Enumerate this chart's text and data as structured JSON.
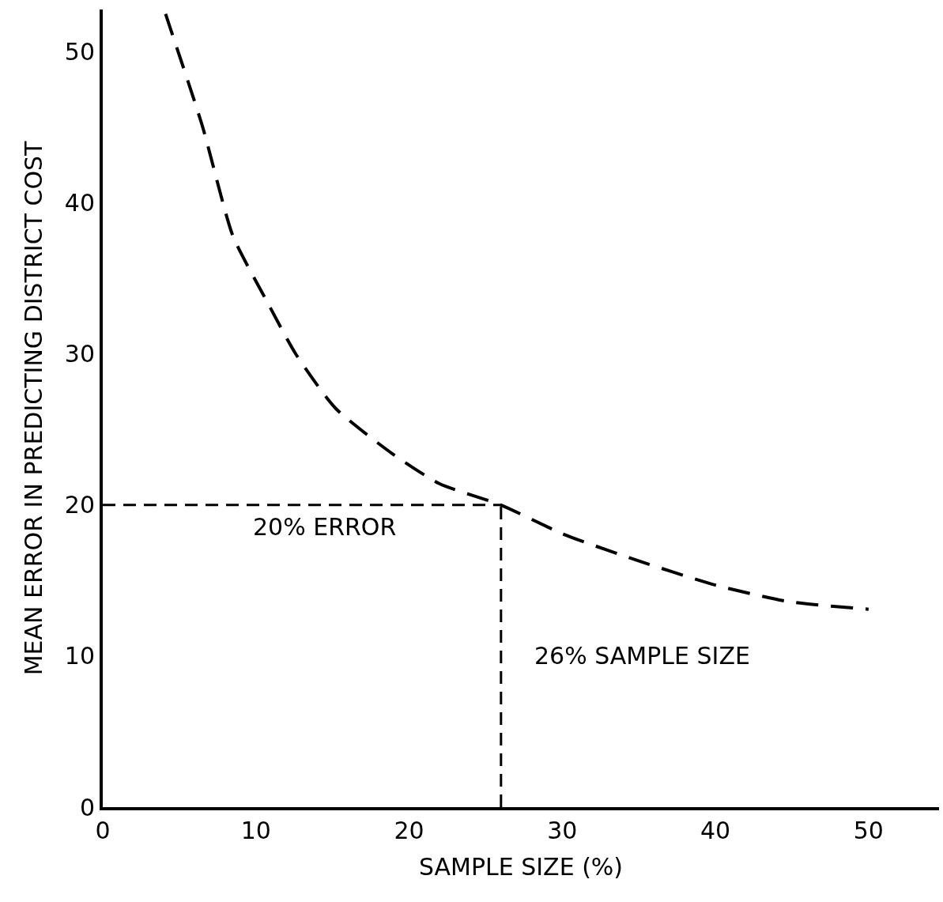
{
  "chart_data": {
    "type": "line",
    "xlabel": "SAMPLE SIZE (%)",
    "ylabel": "MEAN ERROR IN PREDICTING DISTRICT COST",
    "x": [
      4.1,
      6.5,
      8.5,
      10.6,
      12.6,
      15.2,
      18.9,
      22.0,
      26.0,
      30.0,
      34.4,
      40.0,
      44.8,
      50.0
    ],
    "series": [
      {
        "color": "#000000",
        "values": [
          52.5,
          45.1,
          37.8,
          33.7,
          30.0,
          26.4,
          23.4,
          21.4,
          20.0,
          18.1,
          16.5,
          14.7,
          13.6,
          13.1
        ]
      }
    ],
    "xlim": [
      0,
      54.6
    ],
    "ylim": [
      0,
      52.8
    ],
    "xticks": [
      0,
      10,
      20,
      30,
      40,
      50
    ],
    "yticks": [
      0,
      10,
      20,
      30,
      40,
      50
    ],
    "ref_lines": [
      {
        "axis": "y",
        "value": 20,
        "label": "20% ERROR",
        "line_style": "dashed",
        "color": "#000000"
      },
      {
        "axis": "x",
        "value": 26,
        "label": "26% SAMPLE SIZE",
        "line_style": "dashed",
        "color": "#000000"
      }
    ],
    "grid": false,
    "marker": "none",
    "line_style": "dashed"
  }
}
